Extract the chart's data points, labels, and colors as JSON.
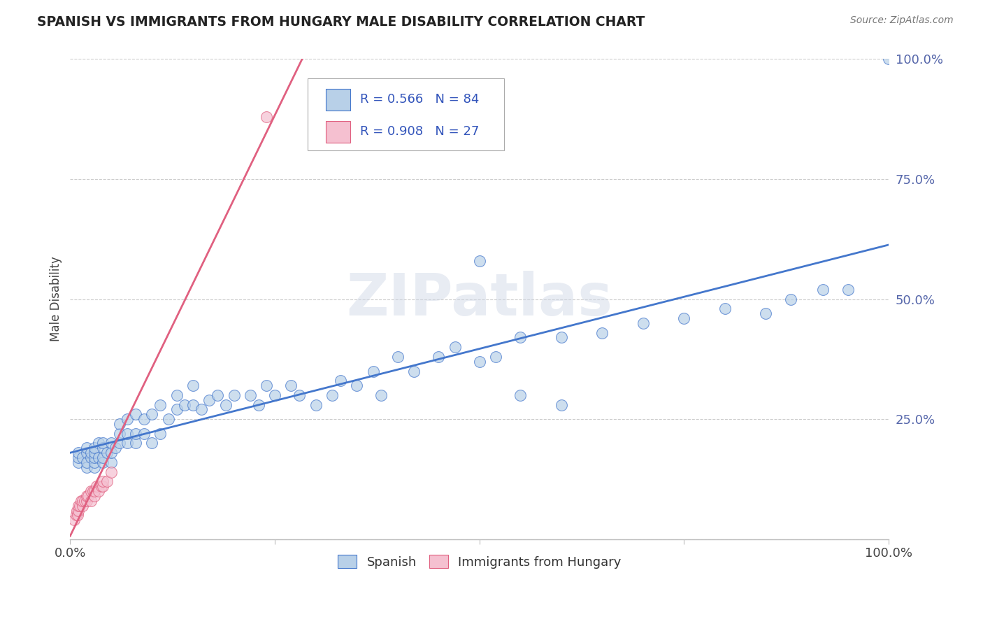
{
  "title": "SPANISH VS IMMIGRANTS FROM HUNGARY MALE DISABILITY CORRELATION CHART",
  "source": "Source: ZipAtlas.com",
  "ylabel": "Male Disability",
  "xlim": [
    0.0,
    1.0
  ],
  "ylim": [
    0.0,
    1.0
  ],
  "spanish_R": 0.566,
  "spanish_N": 84,
  "hungary_R": 0.908,
  "hungary_N": 27,
  "spanish_color": "#b8d0e8",
  "hungary_color": "#f5c0d0",
  "spanish_line_color": "#4477cc",
  "hungary_line_color": "#e06080",
  "watermark_text": "ZIPatlas",
  "spanish_x": [
    0.01,
    0.01,
    0.01,
    0.015,
    0.02,
    0.02,
    0.02,
    0.02,
    0.025,
    0.025,
    0.03,
    0.03,
    0.03,
    0.03,
    0.03,
    0.035,
    0.035,
    0.04,
    0.04,
    0.04,
    0.04,
    0.045,
    0.05,
    0.05,
    0.05,
    0.055,
    0.06,
    0.06,
    0.06,
    0.07,
    0.07,
    0.07,
    0.08,
    0.08,
    0.08,
    0.09,
    0.09,
    0.1,
    0.1,
    0.11,
    0.11,
    0.12,
    0.13,
    0.13,
    0.14,
    0.15,
    0.15,
    0.16,
    0.17,
    0.18,
    0.19,
    0.2,
    0.22,
    0.23,
    0.24,
    0.25,
    0.27,
    0.28,
    0.3,
    0.32,
    0.33,
    0.35,
    0.37,
    0.38,
    0.4,
    0.42,
    0.45,
    0.47,
    0.5,
    0.52,
    0.55,
    0.6,
    0.65,
    0.7,
    0.75,
    0.8,
    0.85,
    0.88,
    0.92,
    0.95,
    0.5,
    0.55,
    0.6,
    1.0
  ],
  "spanish_y": [
    0.16,
    0.17,
    0.18,
    0.17,
    0.15,
    0.16,
    0.18,
    0.19,
    0.17,
    0.18,
    0.15,
    0.16,
    0.17,
    0.18,
    0.19,
    0.17,
    0.2,
    0.16,
    0.17,
    0.19,
    0.2,
    0.18,
    0.16,
    0.18,
    0.2,
    0.19,
    0.2,
    0.22,
    0.24,
    0.2,
    0.22,
    0.25,
    0.2,
    0.22,
    0.26,
    0.22,
    0.25,
    0.2,
    0.26,
    0.22,
    0.28,
    0.25,
    0.27,
    0.3,
    0.28,
    0.28,
    0.32,
    0.27,
    0.29,
    0.3,
    0.28,
    0.3,
    0.3,
    0.28,
    0.32,
    0.3,
    0.32,
    0.3,
    0.28,
    0.3,
    0.33,
    0.32,
    0.35,
    0.3,
    0.38,
    0.35,
    0.38,
    0.4,
    0.37,
    0.38,
    0.42,
    0.42,
    0.43,
    0.45,
    0.46,
    0.48,
    0.47,
    0.5,
    0.52,
    0.52,
    0.58,
    0.3,
    0.28,
    1.0
  ],
  "hungary_x": [
    0.005,
    0.007,
    0.008,
    0.009,
    0.01,
    0.01,
    0.012,
    0.013,
    0.015,
    0.015,
    0.018,
    0.02,
    0.02,
    0.022,
    0.025,
    0.025,
    0.028,
    0.03,
    0.03,
    0.032,
    0.035,
    0.038,
    0.04,
    0.04,
    0.045,
    0.05,
    0.24
  ],
  "hungary_y": [
    0.04,
    0.05,
    0.06,
    0.05,
    0.06,
    0.07,
    0.07,
    0.08,
    0.07,
    0.08,
    0.08,
    0.08,
    0.09,
    0.09,
    0.1,
    0.08,
    0.1,
    0.09,
    0.1,
    0.11,
    0.1,
    0.11,
    0.11,
    0.12,
    0.12,
    0.14,
    0.88
  ]
}
